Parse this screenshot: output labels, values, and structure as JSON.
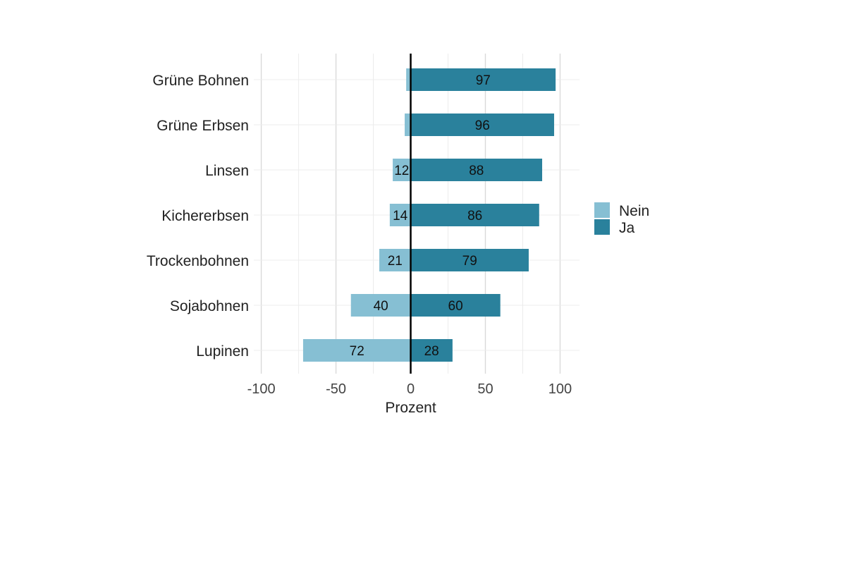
{
  "chart_data": {
    "type": "bar",
    "orientation": "horizontal",
    "stacking": "diverging",
    "categories": [
      "Grüne Bohnen",
      "Grüne Erbsen",
      "Linsen",
      "Kichererbsen",
      "Trockenbohnen",
      "Sojabohnen",
      "Lupinen"
    ],
    "series": [
      {
        "name": "Nein",
        "color": "#86bfd3",
        "values": [
          3,
          4,
          12,
          14,
          21,
          40,
          72
        ]
      },
      {
        "name": "Ja",
        "color": "#2a819c",
        "values": [
          97,
          96,
          88,
          86,
          79,
          60,
          28
        ]
      }
    ],
    "data_labels": {
      "Nein": [
        "",
        "",
        "12",
        "14",
        "21",
        "40",
        "72"
      ],
      "Ja": [
        "97",
        "96",
        "88",
        "86",
        "79",
        "60",
        "28"
      ]
    },
    "xlabel": "Prozent",
    "ylabel": "",
    "xlim": [
      -105,
      113
    ],
    "xticks": [
      -100,
      -50,
      0,
      50,
      100
    ],
    "xtick_labels": [
      "-100",
      "-50",
      "0",
      "50",
      "100"
    ],
    "grid": true,
    "legend_position": "right",
    "theme": "minimal"
  }
}
